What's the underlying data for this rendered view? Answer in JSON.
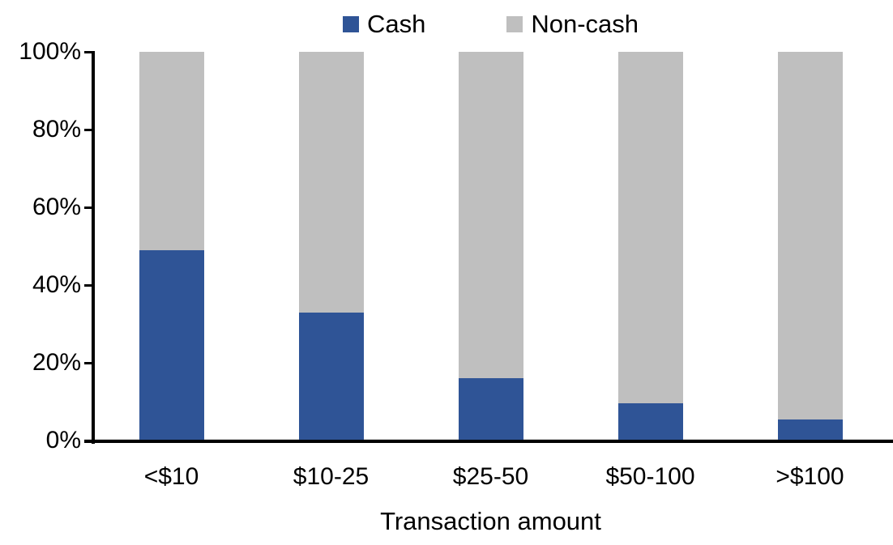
{
  "chart_data": {
    "type": "bar",
    "stacked": true,
    "title": "",
    "categories": [
      "<$10",
      "$10-25",
      "$25-50",
      "$50-100",
      ">$100"
    ],
    "series": [
      {
        "name": "Cash",
        "color": "#2F5496",
        "values": [
          49,
          33,
          16,
          9.5,
          5.5
        ]
      },
      {
        "name": "Non-cash",
        "color": "#BFBFBF",
        "values": [
          51,
          67,
          84,
          90.5,
          94.5
        ]
      }
    ],
    "xlabel": "Transaction amount",
    "ylabel": "",
    "ylim": [
      0,
      100
    ],
    "yticks": [
      "0%",
      "20%",
      "40%",
      "60%",
      "80%",
      "100%"
    ],
    "ytick_values": [
      0,
      20,
      40,
      60,
      80,
      100
    ],
    "legend_position": "top",
    "grid": false,
    "axis_color": "#000000",
    "zero_line_color": "#D9D9D9",
    "background_color": "#FFFFFF"
  }
}
